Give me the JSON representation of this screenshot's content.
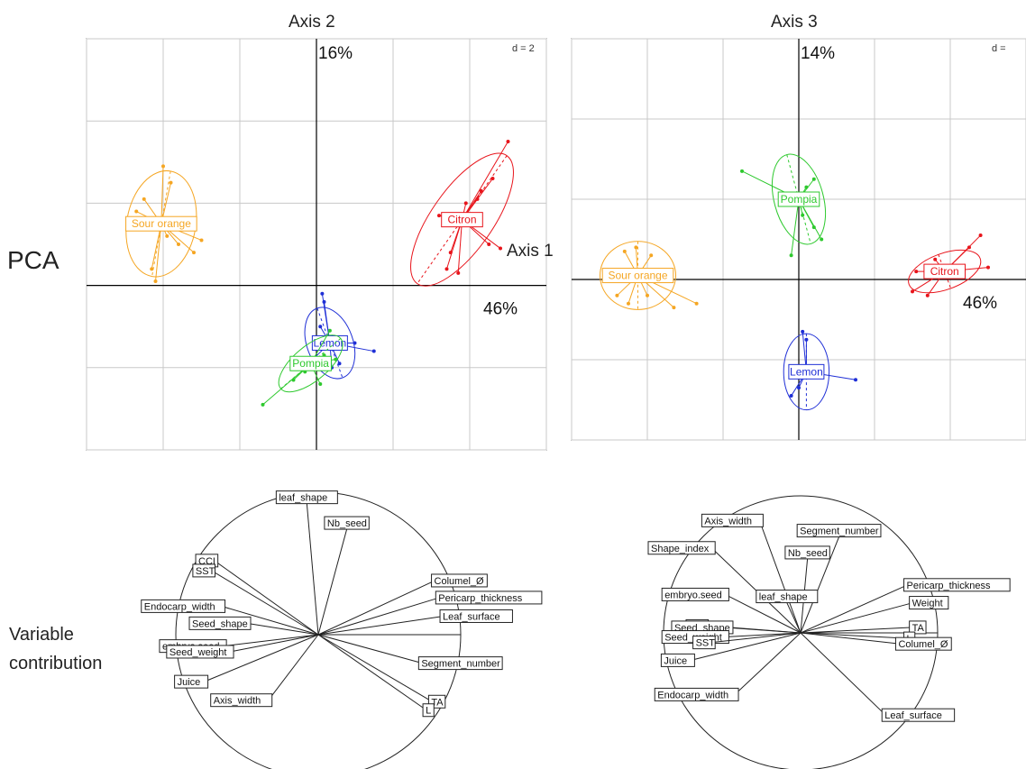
{
  "labels": {
    "pca": "PCA",
    "variable_contribution_line1": "Variable",
    "variable_contribution_line2": "contribution"
  },
  "colors": {
    "Sour orange": "#f5a623",
    "Citron": "#e8141b",
    "Lemon": "#1f2fd6",
    "Pompia": "#2ec92e",
    "grid": "#c8c8c8",
    "axis": "#000000"
  },
  "chart_data": [
    {
      "type": "scatter",
      "panel": "pca-axis1-axis2",
      "title": "Axis 2",
      "xlabel": "Axis 1",
      "x_pct": "46%",
      "y_pct": "16%",
      "d_label": "d = 2",
      "xlim": [
        -6,
        6
      ],
      "ylim": [
        -4,
        6
      ],
      "grid_step": 2,
      "groups": [
        {
          "name": "Sour orange",
          "center": [
            -4.05,
            1.5
          ],
          "ellipse": {
            "rx": 0.9,
            "ry": 1.3,
            "angle": 10
          },
          "points": [
            [
              -4.5,
              2.1
            ],
            [
              -4.0,
              2.9
            ],
            [
              -3.8,
              2.5
            ],
            [
              -4.7,
              1.8
            ],
            [
              -3.6,
              1.0
            ],
            [
              -3.0,
              1.1
            ],
            [
              -3.2,
              0.8
            ],
            [
              -4.3,
              0.4
            ],
            [
              -4.6,
              1.6
            ],
            [
              -4.2,
              0.1
            ],
            [
              -3.5,
              1.6
            ],
            [
              -3.9,
              1.2
            ]
          ]
        },
        {
          "name": "Citron",
          "center": [
            3.8,
            1.6
          ],
          "ellipse": {
            "rx": 0.8,
            "ry": 1.9,
            "angle": 35
          },
          "points": [
            [
              5.0,
              3.5
            ],
            [
              4.6,
              2.6
            ],
            [
              4.3,
              2.3
            ],
            [
              4.5,
              1.0
            ],
            [
              4.8,
              0.9
            ],
            [
              3.4,
              0.4
            ],
            [
              3.7,
              0.3
            ],
            [
              4.2,
              2.1
            ],
            [
              3.2,
              1.7
            ],
            [
              3.9,
              2.0
            ],
            [
              3.5,
              0.8
            ]
          ]
        },
        {
          "name": "Lemon",
          "center": [
            0.35,
            -1.4
          ],
          "ellipse": {
            "rx": 0.6,
            "ry": 0.9,
            "angle": -20
          },
          "points": [
            [
              0.15,
              -0.2
            ],
            [
              0.2,
              -0.4
            ],
            [
              0.1,
              -1.0
            ],
            [
              1.0,
              -1.4
            ],
            [
              1.5,
              -1.6
            ],
            [
              0.6,
              -1.9
            ],
            [
              -0.1,
              -1.8
            ],
            [
              0.4,
              -2.0
            ]
          ]
        },
        {
          "name": "Pompia",
          "center": [
            -0.15,
            -1.9
          ],
          "ellipse": {
            "rx": 0.45,
            "ry": 0.95,
            "angle": 50
          },
          "points": [
            [
              -1.4,
              -2.9
            ],
            [
              0.35,
              -1.1
            ],
            [
              0.2,
              -1.7
            ],
            [
              -0.6,
              -2.3
            ],
            [
              0.5,
              -1.8
            ],
            [
              -0.3,
              -2.1
            ],
            [
              0.1,
              -2.4
            ]
          ]
        }
      ]
    },
    {
      "type": "scatter",
      "panel": "pca-axis1-axis3",
      "title": "Axis 3",
      "xlabel": "Axis 1",
      "x_pct": "46%",
      "y_pct": "14%",
      "d_label": "d =",
      "xlim": [
        -6,
        6
      ],
      "ylim": [
        -4,
        6
      ],
      "grid_step": 2,
      "groups": [
        {
          "name": "Sour orange",
          "center": [
            -4.25,
            0.1
          ],
          "ellipse": {
            "rx": 1.0,
            "ry": 0.85,
            "angle": 0
          },
          "points": [
            [
              -4.6,
              0.7
            ],
            [
              -4.3,
              0.8
            ],
            [
              -3.9,
              0.6
            ],
            [
              -3.6,
              0.2
            ],
            [
              -2.7,
              -0.6
            ],
            [
              -3.3,
              -0.7
            ],
            [
              -4.8,
              -0.4
            ],
            [
              -4.5,
              -0.6
            ],
            [
              -4.0,
              -0.4
            ],
            [
              -4.9,
              0.0
            ]
          ]
        },
        {
          "name": "Citron",
          "center": [
            3.85,
            0.2
          ],
          "ellipse": {
            "rx": 1.0,
            "ry": 0.45,
            "angle": -20
          },
          "points": [
            [
              4.8,
              1.1
            ],
            [
              4.5,
              0.8
            ],
            [
              5.0,
              0.3
            ],
            [
              3.0,
              -0.3
            ],
            [
              3.4,
              -0.4
            ],
            [
              3.6,
              0.5
            ],
            [
              3.1,
              0.2
            ],
            [
              4.2,
              0.3
            ]
          ]
        },
        {
          "name": "Pompia",
          "center": [
            0.0,
            2.0
          ],
          "ellipse": {
            "rx": 0.65,
            "ry": 1.15,
            "angle": -15
          },
          "points": [
            [
              -1.5,
              2.7
            ],
            [
              0.4,
              2.5
            ],
            [
              0.2,
              2.3
            ],
            [
              0.6,
              1.0
            ],
            [
              -0.2,
              0.6
            ],
            [
              0.1,
              1.6
            ],
            [
              0.4,
              1.3
            ]
          ]
        },
        {
          "name": "Lemon",
          "center": [
            0.2,
            -2.3
          ],
          "ellipse": {
            "rx": 0.6,
            "ry": 0.95,
            "angle": 0
          },
          "points": [
            [
              0.1,
              -1.3
            ],
            [
              0.2,
              -1.5
            ],
            [
              1.5,
              -2.5
            ],
            [
              0.6,
              -2.3
            ],
            [
              -0.2,
              -2.9
            ],
            [
              0.0,
              -2.7
            ],
            [
              0.3,
              -2.2
            ]
          ]
        }
      ]
    },
    {
      "type": "correlation-circle",
      "panel": "variables-axis1-axis2",
      "variables": [
        {
          "name": "leaf_shape",
          "x": -0.08,
          "y": 0.92
        },
        {
          "name": "Nb_seed",
          "x": 0.2,
          "y": 0.74
        },
        {
          "name": "CCI",
          "x": -0.73,
          "y": 0.52
        },
        {
          "name": "SST",
          "x": -0.75,
          "y": 0.45
        },
        {
          "name": "Columel_Ø",
          "x": 0.82,
          "y": 0.38
        },
        {
          "name": "Pericarp_thickness",
          "x": 0.85,
          "y": 0.26
        },
        {
          "name": "Leaf_surface",
          "x": 0.88,
          "y": 0.13
        },
        {
          "name": "Endocarp_width",
          "x": -0.68,
          "y": 0.2
        },
        {
          "name": "Seed_shape",
          "x": -0.5,
          "y": 0.08
        },
        {
          "name": "embryo.seed",
          "x": -0.67,
          "y": -0.08
        },
        {
          "name": "Seed_weight",
          "x": -0.62,
          "y": -0.12
        },
        {
          "name": "Segment_number",
          "x": 0.73,
          "y": -0.2
        },
        {
          "name": "Juice",
          "x": -0.8,
          "y": -0.33
        },
        {
          "name": "Axis_width",
          "x": -0.35,
          "y": -0.46
        },
        {
          "name": "TA",
          "x": 0.8,
          "y": -0.47
        },
        {
          "name": "L",
          "x": 0.76,
          "y": -0.53
        }
      ]
    },
    {
      "type": "correlation-circle",
      "panel": "variables-axis1-axis3",
      "variables": [
        {
          "name": "Axis_width",
          "x": -0.3,
          "y": 0.82
        },
        {
          "name": "Segment_number",
          "x": 0.28,
          "y": 0.7
        },
        {
          "name": "Shape_index",
          "x": -0.65,
          "y": 0.62
        },
        {
          "name": "Nb_seed",
          "x": 0.05,
          "y": 0.54
        },
        {
          "name": "Pericarp_thickness",
          "x": 0.78,
          "y": 0.35
        },
        {
          "name": "Weight",
          "x": 0.82,
          "y": 0.22
        },
        {
          "name": "embryo.seed",
          "x": -0.55,
          "y": 0.28
        },
        {
          "name": "leaf_shape",
          "x": -0.1,
          "y": 0.22
        },
        {
          "name": "TA",
          "x": 0.82,
          "y": 0.04
        },
        {
          "name": "L",
          "x": 0.78,
          "y": -0.04
        },
        {
          "name": "Columel_Ø",
          "x": 0.72,
          "y": -0.08
        },
        {
          "name": "CCI",
          "x": -0.7,
          "y": 0.05
        },
        {
          "name": "Seed_shape",
          "x": -0.52,
          "y": 0.04
        },
        {
          "name": "Seed_weight",
          "x": -0.55,
          "y": -0.03
        },
        {
          "name": "SST",
          "x": -0.65,
          "y": -0.07
        },
        {
          "name": "Juice",
          "x": -0.8,
          "y": -0.2
        },
        {
          "name": "Endocarp_width",
          "x": -0.48,
          "y": -0.45
        },
        {
          "name": "Leaf_surface",
          "x": 0.62,
          "y": -0.6
        }
      ]
    }
  ]
}
